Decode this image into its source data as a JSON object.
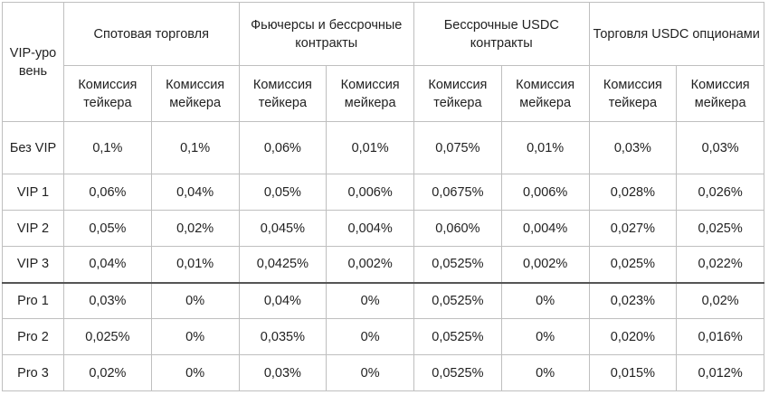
{
  "header": {
    "level_label": "VIP-уровень",
    "groups": [
      "Спотовая торговля",
      "Фьючерсы и бессрочные контракты",
      "Бессрочные USDC контракты",
      "Торговля USDC опционами"
    ],
    "taker_label": "Комиссия тейкера",
    "maker_label": "Комиссия мейкера"
  },
  "rows": [
    {
      "level": "Без VIP",
      "values": [
        "0,1%",
        "0,1%",
        "0,06%",
        "0,01%",
        "0,075%",
        "0,01%",
        "0,03%",
        "0,03%"
      ]
    },
    {
      "level": "VIP 1",
      "values": [
        "0,06%",
        "0,04%",
        "0,05%",
        "0,006%",
        "0,0675%",
        "0,006%",
        "0,028%",
        "0,026%"
      ]
    },
    {
      "level": "VIP 2",
      "values": [
        "0,05%",
        "0,02%",
        "0,045%",
        "0,004%",
        "0,060%",
        "0,004%",
        "0,027%",
        "0,025%"
      ]
    },
    {
      "level": "VIP 3",
      "values": [
        "0,04%",
        "0,01%",
        "0,0425%",
        "0,002%",
        "0,0525%",
        "0,002%",
        "0,025%",
        "0,022%"
      ]
    },
    {
      "level": "Pro 1",
      "values": [
        "0,03%",
        "0%",
        "0,04%",
        "0%",
        "0,0525%",
        "0%",
        "0,023%",
        "0,02%"
      ]
    },
    {
      "level": "Pro 2",
      "values": [
        "0,025%",
        "0%",
        "0,035%",
        "0%",
        "0,0525%",
        "0%",
        "0,020%",
        "0,016%"
      ]
    },
    {
      "level": "Pro 3",
      "values": [
        "0,02%",
        "0%",
        "0,03%",
        "0%",
        "0,0525%",
        "0%",
        "0,015%",
        "0,012%"
      ]
    }
  ]
}
